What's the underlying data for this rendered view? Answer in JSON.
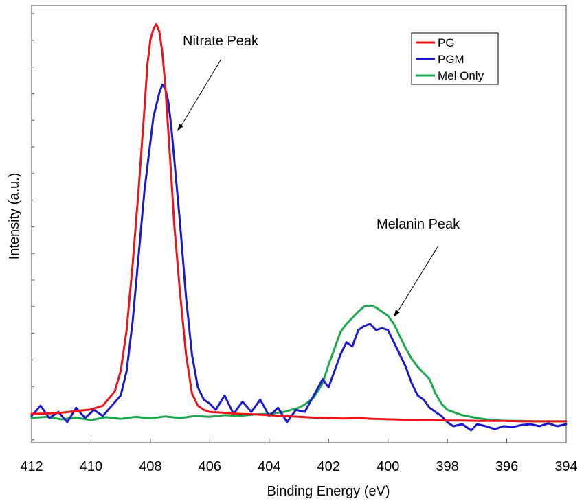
{
  "chart_data": {
    "type": "line",
    "xlabel": "Binding Energy (eV)",
    "ylabel": "Intensity (a.u.)",
    "xlim": [
      412,
      394
    ],
    "x_reversed": true,
    "ylim": [
      0,
      100
    ],
    "x_ticks": [
      412,
      410,
      408,
      406,
      404,
      402,
      400,
      398,
      396,
      394
    ],
    "y_ticks_labeled": false,
    "grid": false,
    "legend_position": "top-right",
    "annotations": [
      {
        "text": "Nitrate Peak",
        "arrow_to": [
          407.4,
          74.3
        ]
      },
      {
        "text": "Melanin Peak",
        "arrow_to": [
          399.8,
          27.7
        ]
      }
    ],
    "series": [
      {
        "name": "PG",
        "color": "#e8161b",
        "x": [
          412,
          411.5,
          411,
          410.5,
          410,
          409.6,
          409.2,
          409,
          408.8,
          408.6,
          408.4,
          408.2,
          408.1,
          408.0,
          407.9,
          407.8,
          407.7,
          407.6,
          407.5,
          407.4,
          407.3,
          407.2,
          407.0,
          406.8,
          406.6,
          406.4,
          406.2,
          406,
          405.5,
          405,
          404.5,
          404,
          403.5,
          403,
          402.5,
          402,
          401.5,
          401,
          400.5,
          400,
          399.5,
          399,
          398.5,
          398,
          397.5,
          397,
          396.5,
          396,
          395.5,
          395,
          394.5,
          394
        ],
        "values": [
          3.5,
          3.6,
          3.8,
          4.2,
          4.6,
          5.5,
          9.0,
          14.0,
          24.0,
          40.0,
          58.0,
          78.0,
          89.0,
          95.0,
          97.5,
          98.8,
          97.0,
          92.0,
          84.0,
          73.0,
          62.0,
          50.0,
          33.0,
          18.0,
          8.5,
          5.5,
          4.5,
          4.0,
          3.8,
          3.5,
          3.4,
          3.2,
          3.0,
          2.8,
          2.6,
          2.5,
          2.4,
          2.5,
          2.3,
          2.2,
          2.1,
          2.0,
          2.0,
          1.9,
          1.9,
          1.8,
          1.8,
          1.8,
          1.7,
          1.7,
          1.7,
          1.7
        ]
      },
      {
        "name": "PGM",
        "color": "#1a1acb",
        "x": [
          412,
          411.7,
          411.4,
          411.1,
          410.8,
          410.5,
          410.2,
          409.9,
          409.6,
          409.3,
          409.0,
          408.8,
          408.6,
          408.4,
          408.2,
          408.0,
          407.9,
          407.8,
          407.7,
          407.6,
          407.5,
          407.4,
          407.3,
          407.2,
          407.0,
          406.8,
          406.6,
          406.4,
          406.2,
          406.0,
          405.8,
          405.5,
          405.2,
          404.9,
          404.6,
          404.3,
          404.0,
          403.7,
          403.4,
          403.1,
          402.8,
          402.5,
          402.2,
          402.0,
          401.8,
          401.6,
          401.4,
          401.2,
          401.0,
          400.8,
          400.6,
          400.4,
          400.2,
          400.0,
          399.8,
          399.6,
          399.4,
          399.2,
          399.0,
          398.8,
          398.6,
          398.4,
          398.2,
          398.0,
          397.8,
          397.5,
          397.2,
          397.0,
          396.7,
          396.4,
          396.1,
          395.8,
          395.5,
          395.2,
          394.9,
          394.6,
          394.3,
          394.0
        ],
        "values": [
          3.0,
          5.5,
          2.5,
          4.0,
          1.5,
          5.0,
          2.5,
          4.5,
          3.0,
          5.5,
          8.0,
          14.0,
          26.0,
          42.0,
          58.0,
          70.0,
          76.0,
          79.0,
          82.0,
          84.0,
          83.0,
          80.0,
          74.0,
          66.0,
          50.0,
          32.0,
          18.0,
          10.0,
          7.0,
          6.0,
          4.5,
          8.0,
          3.5,
          6.5,
          4.0,
          7.0,
          3.0,
          5.0,
          1.5,
          4.5,
          4.0,
          8.0,
          12.0,
          10.0,
          14.0,
          18.0,
          21.0,
          20.0,
          24.0,
          25.0,
          25.5,
          24.0,
          24.5,
          24.0,
          21.0,
          18.0,
          15.0,
          11.0,
          8.0,
          7.0,
          5.0,
          4.0,
          3.0,
          1.5,
          0.5,
          1.0,
          -0.5,
          1.0,
          0.5,
          -0.2,
          0.5,
          0.3,
          0.8,
          1.0,
          0.5,
          1.2,
          0.5,
          1.0
        ]
      },
      {
        "name": "Mel Only",
        "color": "#1aa74d",
        "x": [
          412,
          411.5,
          411,
          410.5,
          410,
          409.5,
          409,
          408.5,
          408,
          407.5,
          407,
          406.5,
          406,
          405.5,
          405,
          404.5,
          404,
          403.5,
          403,
          402.8,
          402.5,
          402.2,
          402.0,
          401.8,
          401.6,
          401.4,
          401.2,
          401.0,
          400.8,
          400.6,
          400.4,
          400.2,
          400.0,
          399.8,
          399.6,
          399.4,
          399.2,
          399.0,
          398.8,
          398.6,
          398.4,
          398.2,
          398.0,
          397.5,
          397.0,
          396.5,
          396.0,
          395.5,
          395.0,
          394.5,
          394.0
        ],
        "values": [
          2.5,
          2.8,
          2.2,
          2.6,
          2.0,
          2.7,
          2.3,
          2.8,
          2.4,
          2.9,
          2.5,
          3.0,
          2.8,
          3.2,
          3.0,
          3.4,
          3.5,
          4.0,
          5.0,
          5.8,
          7.5,
          11.0,
          15.5,
          19.5,
          23.5,
          25.5,
          27.0,
          28.5,
          29.8,
          30.0,
          29.5,
          28.5,
          27.5,
          25.5,
          22.5,
          19.5,
          17.0,
          15.0,
          13.5,
          12.0,
          8.5,
          6.0,
          4.5,
          3.2,
          2.5,
          2.0,
          1.8,
          1.8,
          1.7,
          1.7,
          1.7
        ]
      }
    ]
  }
}
